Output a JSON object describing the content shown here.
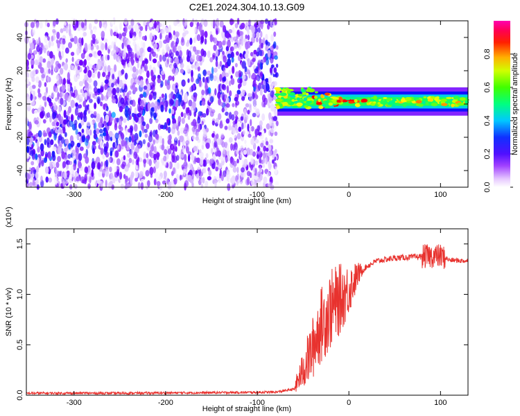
{
  "title": "C2E1.2024.304.10.13.G09",
  "chart_data": [
    {
      "type": "heatmap",
      "xlabel": "Height of straight line (km)",
      "ylabel": "Frequency (Hz)",
      "xlim": [
        -352,
        130
      ],
      "ylim": [
        -50,
        50
      ],
      "x_ticks": [
        "-300",
        "-200",
        "-100",
        "0",
        "100"
      ],
      "y_ticks": [
        "40",
        "20",
        "0",
        "-20",
        "-40"
      ],
      "colorbar": {
        "label": "Normalized spectral amplitude",
        "range": [
          0,
          1
        ],
        "ticks": [
          "0.0",
          "0.2",
          "0.4",
          "0.6",
          "0.8"
        ],
        "colors": [
          "#ffffff",
          "#d6b8ff",
          "#7000ff",
          "#1010ff",
          "#00c8ff",
          "#00ff70",
          "#80ff00",
          "#ffff00",
          "#ff7a00",
          "#ff0000",
          "#ff00a0"
        ]
      },
      "regions": [
        {
          "x_range": [
            -352,
            -78
          ],
          "description_value": "broadband noise 0.0-0.35"
        },
        {
          "x_range": [
            -78,
            130
          ],
          "center_frequency_hz": 1.5,
          "peak_amplitude": 0.9
        }
      ]
    },
    {
      "type": "line",
      "xlabel": "Height of straight line (km)",
      "ylabel": "SNR (10 * v/v)",
      "y_multiplier": "(x10⁴)",
      "xlim": [
        -352,
        130
      ],
      "ylim": [
        0,
        1.65
      ],
      "x_ticks": [
        "-300",
        "-200",
        "-100",
        "0",
        "100"
      ],
      "y_ticks": [
        "0.0",
        "0.5",
        "1.0",
        "1.5"
      ],
      "color": "#e8322e",
      "series": [
        {
          "x": [
            -352,
            -250,
            -150,
            -80,
            -60,
            -50,
            -40,
            -35,
            -30,
            -25,
            -20,
            -15,
            -10,
            -5,
            0,
            5,
            10,
            20,
            30,
            50,
            70,
            90,
            100,
            110,
            130
          ],
          "values": [
            0.02,
            0.02,
            0.025,
            0.03,
            0.06,
            0.25,
            0.45,
            0.6,
            0.7,
            0.78,
            0.85,
            0.9,
            0.95,
            1.0,
            1.05,
            1.12,
            1.2,
            1.28,
            1.33,
            1.36,
            1.37,
            1.38,
            1.38,
            1.34,
            1.33
          ]
        }
      ]
    }
  ]
}
